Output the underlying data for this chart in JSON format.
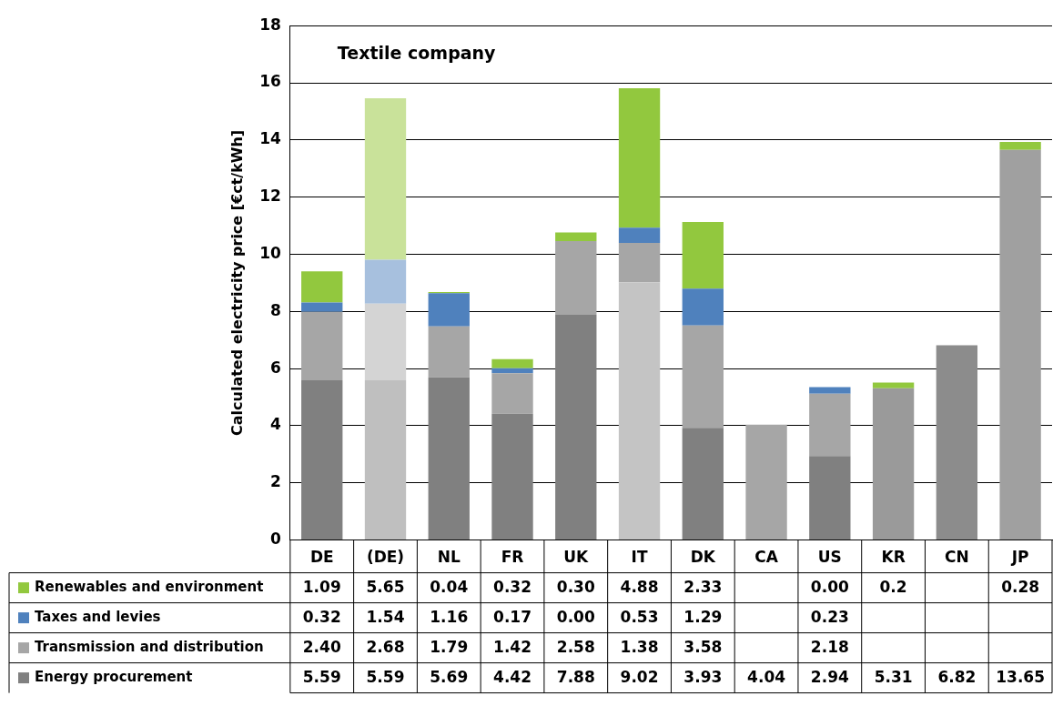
{
  "chart_data": {
    "type": "bar",
    "title": "Textile company",
    "ylabel": "Calculated electricity price [€ct/kWh]",
    "categories": [
      "DE",
      "(DE)",
      "NL",
      "FR",
      "UK",
      "IT",
      "DK",
      "CA",
      "US",
      "KR",
      "CN",
      "JP"
    ],
    "stacked": true,
    "ylim": [
      0,
      18
    ],
    "yticks": [
      0,
      2,
      4,
      6,
      8,
      10,
      12,
      14,
      16,
      18
    ],
    "grid": "y",
    "legend": "bottom",
    "series": [
      {
        "name": "Energy procurement",
        "color": "#808080",
        "colors": [
          "#808080",
          "#bfbfbf",
          "#808080",
          "#808080",
          "#808080",
          "#c4c4c4",
          "#808080",
          "#a6a6a6",
          "#808080",
          "#9a9a9a",
          "#8c8c8c",
          "#a0a0a0"
        ],
        "values": [
          5.59,
          5.59,
          5.69,
          4.42,
          7.88,
          9.02,
          3.93,
          4.04,
          2.94,
          5.31,
          6.82,
          13.65
        ],
        "value_labels": [
          "5.59",
          "5.59",
          "5.69",
          "4.42",
          "7.88",
          "9.02",
          "3.93",
          "4.04",
          "2.94",
          "5.31",
          "6.82",
          "13.65"
        ]
      },
      {
        "name": "Transmission and distribution",
        "color": "#a6a6a6",
        "colors": [
          "#a6a6a6",
          "#d4d4d4",
          "#a6a6a6",
          "#a6a6a6",
          "#a6a6a6",
          "#a6a6a6",
          "#a6a6a6",
          "#a6a6a6",
          "#a6a6a6",
          "#a6a6a6",
          "#a6a6a6",
          "#a6a6a6"
        ],
        "values": [
          2.4,
          2.68,
          1.79,
          1.42,
          2.58,
          1.38,
          3.58,
          null,
          2.18,
          null,
          null,
          null
        ],
        "value_labels": [
          "2.40",
          "2.68",
          "1.79",
          "1.42",
          "2.58",
          "1.38",
          "3.58",
          null,
          "2.18",
          null,
          null,
          null
        ]
      },
      {
        "name": "Taxes and levies",
        "color": "#4f81bd",
        "colors": [
          "#4f81bd",
          "#a7c0de",
          "#4f81bd",
          "#4f81bd",
          "#4f81bd",
          "#4f81bd",
          "#4f81bd",
          "#4f81bd",
          "#4f81bd",
          "#4f81bd",
          "#4f81bd",
          "#4f81bd"
        ],
        "values": [
          0.32,
          1.54,
          1.16,
          0.17,
          0.0,
          0.53,
          1.29,
          null,
          0.23,
          null,
          null,
          null
        ],
        "value_labels": [
          "0.32",
          "1.54",
          "1.16",
          "0.17",
          "0.00",
          "0.53",
          "1.29",
          null,
          "0.23",
          null,
          null,
          null
        ]
      },
      {
        "name": "Renewables and environment",
        "color": "#92c83e",
        "colors": [
          "#92c83e",
          "#c9e29a",
          "#92c83e",
          "#92c83e",
          "#92c83e",
          "#92c83e",
          "#92c83e",
          "#92c83e",
          "#92c83e",
          "#92c83e",
          "#92c83e",
          "#92c83e"
        ],
        "values": [
          1.09,
          5.65,
          0.04,
          0.32,
          0.3,
          4.88,
          2.33,
          null,
          0.0,
          0.2,
          null,
          0.28
        ],
        "value_labels": [
          "1.09",
          "5.65",
          "0.04",
          "0.32",
          "0.30",
          "4.88",
          "2.33",
          null,
          "0.00",
          "0.2",
          null,
          "0.28"
        ]
      }
    ]
  }
}
